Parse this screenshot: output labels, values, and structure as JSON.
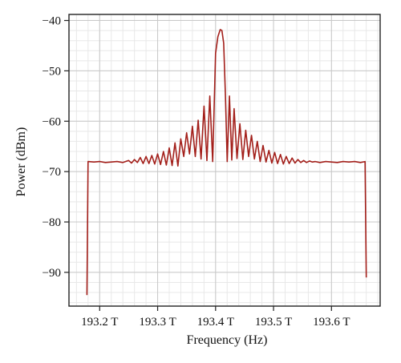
{
  "chart_data": {
    "type": "line",
    "title": "",
    "xlabel": "Frequency (Hz)",
    "ylabel": "Power (dBm)",
    "xlim": [
      193.147,
      193.684
    ],
    "ylim": [
      -96.7,
      -38.8
    ],
    "x_ticks": [
      193.2,
      193.3,
      193.4,
      193.5,
      193.6
    ],
    "x_tick_labels": [
      "193.2 T",
      "193.3 T",
      "193.4 T",
      "193.5 T",
      "193.6 T"
    ],
    "y_ticks": [
      -40,
      -50,
      -60,
      -70,
      -80,
      -90
    ],
    "y_tick_labels": [
      "−40",
      "−50",
      "−60",
      "−70",
      "−80",
      "−90"
    ],
    "grid": true,
    "series": [
      {
        "color": "#a31f1a",
        "description": "Spectrum of a sinc-like pulse centered near 193.414 THz; flat floor near -68 dBm between 193.18 and 193.66 THz with steep drop-offs at both ends",
        "x": [
          193.178,
          193.18,
          193.19,
          193.2,
          193.21,
          193.22,
          193.23,
          193.24,
          193.25,
          193.255,
          193.26,
          193.265,
          193.27,
          193.275,
          193.28,
          193.285,
          193.29,
          193.295,
          193.3,
          193.305,
          193.31,
          193.315,
          193.32,
          193.325,
          193.33,
          193.335,
          193.34,
          193.345,
          193.35,
          193.355,
          193.36,
          193.365,
          193.37,
          193.375,
          193.38,
          193.385,
          193.39,
          193.395,
          193.4,
          193.404,
          193.408,
          193.411,
          193.414,
          193.417,
          193.42,
          193.424,
          193.428,
          193.432,
          193.437,
          193.442,
          193.447,
          193.452,
          193.457,
          193.462,
          193.467,
          193.472,
          193.477,
          193.482,
          193.487,
          193.492,
          193.497,
          193.502,
          193.507,
          193.512,
          193.517,
          193.522,
          193.527,
          193.532,
          193.537,
          193.542,
          193.547,
          193.552,
          193.557,
          193.562,
          193.567,
          193.572,
          193.58,
          193.59,
          193.6,
          193.61,
          193.62,
          193.63,
          193.64,
          193.65,
          193.658,
          193.66
        ],
        "y": [
          -94.5,
          -68.0,
          -68.1,
          -68.0,
          -68.2,
          -68.1,
          -68.0,
          -68.2,
          -67.8,
          -68.3,
          -67.6,
          -68.2,
          -67.2,
          -68.4,
          -67.0,
          -68.4,
          -66.8,
          -68.5,
          -66.5,
          -68.6,
          -66.0,
          -68.7,
          -65.3,
          -68.8,
          -64.3,
          -68.9,
          -63.5,
          -67.0,
          -62.3,
          -66.5,
          -61.0,
          -67.0,
          -59.8,
          -67.5,
          -57.0,
          -67.8,
          -55.0,
          -68.0,
          -46.5,
          -43.2,
          -41.8,
          -42.0,
          -44.5,
          -55.0,
          -68.0,
          -55.0,
          -67.7,
          -57.5,
          -67.4,
          -60.5,
          -67.6,
          -61.8,
          -67.0,
          -62.8,
          -67.5,
          -64.0,
          -68.0,
          -64.8,
          -68.1,
          -65.8,
          -68.3,
          -66.2,
          -68.4,
          -66.6,
          -68.5,
          -67.0,
          -68.4,
          -67.3,
          -68.3,
          -67.6,
          -68.2,
          -67.8,
          -68.2,
          -67.9,
          -68.1,
          -68.0,
          -68.2,
          -68.0,
          -68.1,
          -68.2,
          -68.0,
          -68.1,
          -68.0,
          -68.2,
          -68.0,
          -91.0
        ]
      }
    ]
  }
}
